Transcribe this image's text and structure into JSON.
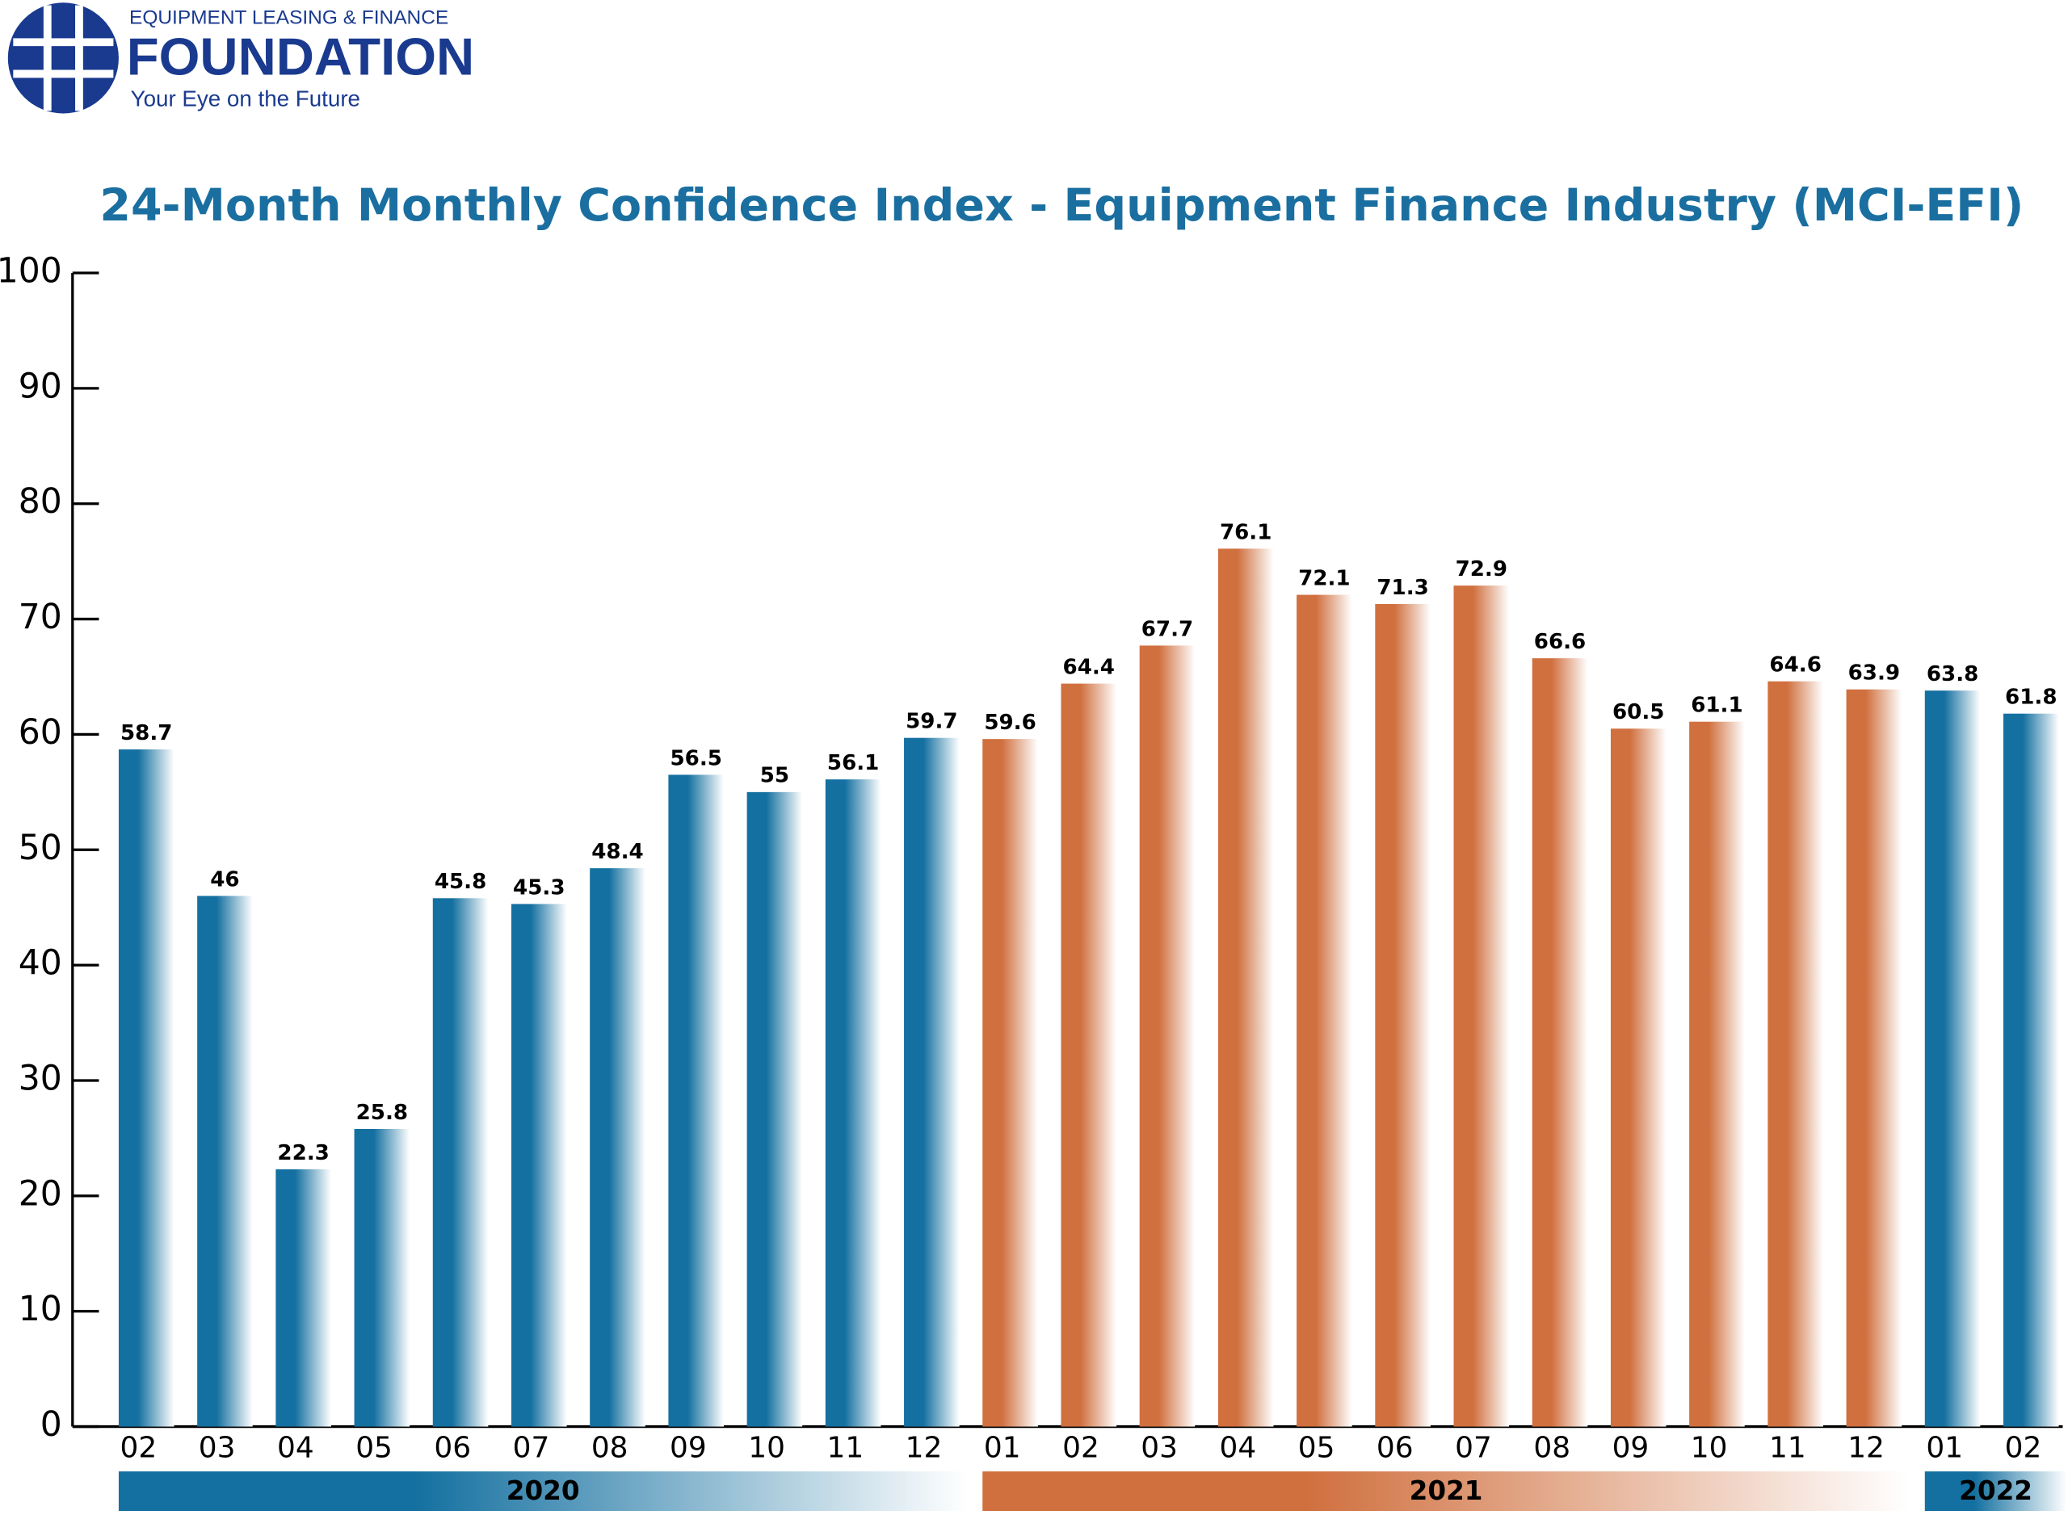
{
  "logo": {
    "top": "EQUIPMENT LEASING & FINANCE",
    "name": "FOUNDATION",
    "tagline": "Your Eye on the Future"
  },
  "chart_data": {
    "type": "bar",
    "title": "24-Month Monthly Confidence Index - Equipment Finance Industry (MCI-EFI)",
    "categories": [
      "02",
      "03",
      "04",
      "05",
      "06",
      "07",
      "08",
      "09",
      "10",
      "11",
      "12",
      "01",
      "02",
      "03",
      "04",
      "05",
      "06",
      "07",
      "08",
      "09",
      "10",
      "11",
      "12",
      "01",
      "02"
    ],
    "series": [
      {
        "name": "2020",
        "color": "#1470a0",
        "values": [
          58.7,
          46,
          22.3,
          25.8,
          45.8,
          45.3,
          48.4,
          56.5,
          55,
          56.1,
          59.7,
          null,
          null,
          null,
          null,
          null,
          null,
          null,
          null,
          null,
          null,
          null,
          null,
          null,
          null
        ]
      },
      {
        "name": "2021",
        "color": "#d0703f",
        "values": [
          null,
          null,
          null,
          null,
          null,
          null,
          null,
          null,
          null,
          null,
          null,
          59.6,
          64.4,
          67.7,
          76.1,
          72.1,
          71.3,
          72.9,
          66.6,
          60.5,
          61.1,
          64.6,
          63.9,
          null,
          null
        ]
      },
      {
        "name": "2022",
        "color": "#1470a0",
        "values": [
          null,
          null,
          null,
          null,
          null,
          null,
          null,
          null,
          null,
          null,
          null,
          null,
          null,
          null,
          null,
          null,
          null,
          null,
          null,
          null,
          null,
          null,
          null,
          63.8,
          61.8
        ]
      }
    ],
    "ylim": [
      0,
      100
    ],
    "yticks": [
      0,
      10,
      20,
      30,
      40,
      50,
      60,
      70,
      80,
      90,
      100
    ]
  }
}
